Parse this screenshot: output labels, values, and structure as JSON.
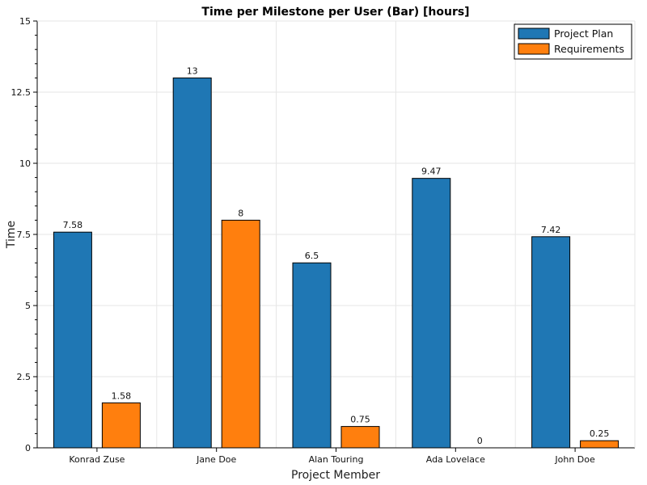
{
  "chart_data": {
    "type": "bar",
    "title": "Time per Milestone per User (Bar) [hours]",
    "xlabel": "Project Member",
    "ylabel": "Time",
    "categories": [
      "Konrad Zuse",
      "Jane Doe",
      "Alan Touring",
      "Ada Lovelace",
      "John Doe"
    ],
    "series": [
      {
        "name": "Project Plan",
        "color": "#1f77b4",
        "values": [
          7.58,
          13,
          6.5,
          9.47,
          7.42
        ]
      },
      {
        "name": "Requirements",
        "color": "#ff7f0e",
        "values": [
          1.58,
          8,
          0.75,
          0,
          0.25
        ]
      }
    ],
    "ylim": [
      0,
      15
    ],
    "yticks": [
      0,
      2.5,
      5,
      7.5,
      10,
      12.5,
      15
    ],
    "ytick_labels": [
      "0",
      "2.5",
      "5",
      "7.5",
      "10",
      "12.5",
      "15"
    ],
    "grid": true,
    "legend_position": "top-right"
  }
}
